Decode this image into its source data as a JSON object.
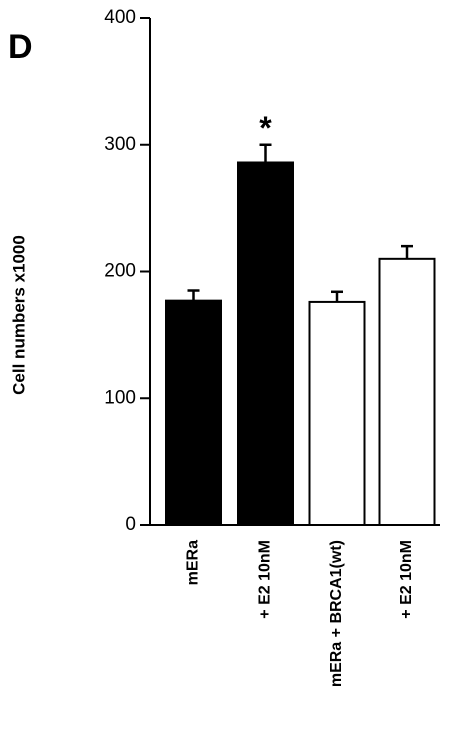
{
  "chart_data": {
    "type": "bar",
    "panel_label": "D",
    "ylabel": "Cell numbers x1000",
    "categories": [
      "mERa",
      "+ E2 10nM",
      "mERa + BRCA1(wt)",
      "+ E2 10nM"
    ],
    "values": [
      177,
      286,
      176,
      210
    ],
    "errors": [
      8,
      14,
      8,
      10
    ],
    "colors": [
      "#000000",
      "#000000",
      "#ffffff",
      "#ffffff"
    ],
    "annotations": [
      {
        "text": "*",
        "category": 1
      }
    ],
    "ylim": [
      0,
      400
    ],
    "yticks": [
      0,
      100,
      200,
      300,
      400
    ],
    "grid": false
  }
}
